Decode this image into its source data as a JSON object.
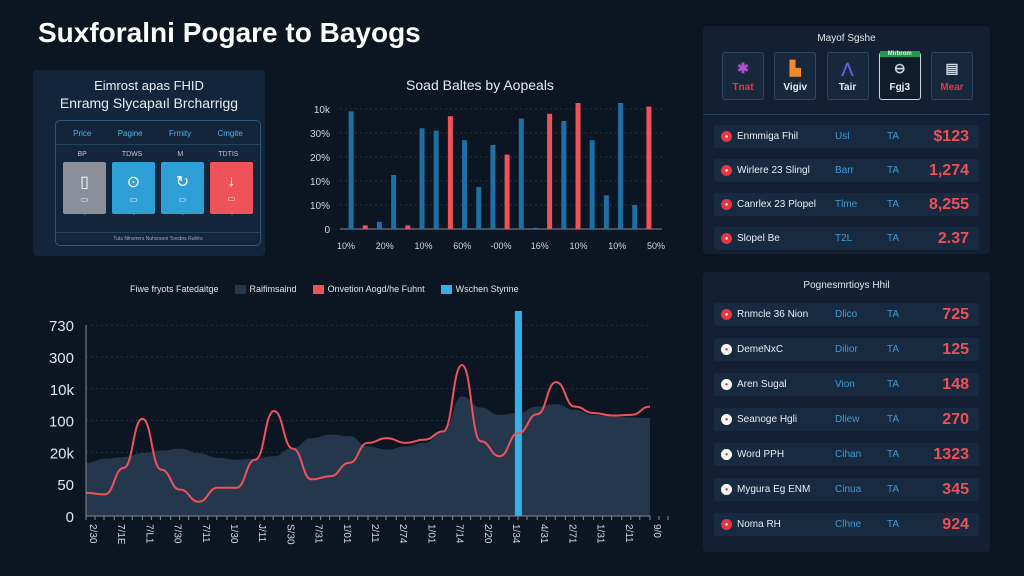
{
  "header": {
    "title": "Suxforalni Pogare to Bayogs"
  },
  "summary_card": {
    "title_line1": "Eimrost apas FHID",
    "title_line2": "Enramg Slycapaıl Brcharrigg",
    "columns": [
      "Price",
      "Pagine",
      "Frmity",
      "Cmgite"
    ],
    "sublabels": [
      "BP",
      "TDWS",
      "M",
      "TDTIS"
    ],
    "tiles": [
      {
        "icon": "battery-icon",
        "glyph": "▯",
        "color": "#8a8f99"
      },
      {
        "icon": "dollar-circle-icon",
        "glyph": "⊙",
        "color": "#2f9fd8"
      },
      {
        "icon": "refresh-icon",
        "glyph": "↻",
        "color": "#2f9fd8"
      },
      {
        "icon": "arrow-down-icon",
        "glyph": "↓",
        "color": "#f0525a"
      }
    ],
    "footer": "Tuts Nlnsmrrs Nuhsrsoni Tovsbrs Ruhlrs"
  },
  "chart_data": [
    {
      "type": "bar",
      "title": "Soad Baltes by Aopeals",
      "yticks": [
        "0",
        "10%",
        "10%",
        "20%",
        "30%",
        "10k"
      ],
      "xticks": [
        "10%",
        "20%",
        "10%",
        "60%",
        "-00%",
        "16%",
        "10%",
        "10%",
        "50%"
      ],
      "colors": {
        "blue": "#1f6fa3",
        "red": "#f0525a"
      },
      "bars": [
        {
          "s": "blue",
          "v": 4.9
        },
        {
          "s": "red",
          "v": 0.15
        },
        {
          "s": "blue",
          "v": 0.3
        },
        {
          "s": "blue",
          "v": 2.25
        },
        {
          "s": "red",
          "v": 0.15
        },
        {
          "s": "blue",
          "v": 4.2
        },
        {
          "s": "blue",
          "v": 4.1
        },
        {
          "s": "red",
          "v": 4.7
        },
        {
          "s": "blue",
          "v": 3.7
        },
        {
          "s": "blue",
          "v": 1.75
        },
        {
          "s": "blue",
          "v": 3.5
        },
        {
          "s": "red",
          "v": 3.1
        },
        {
          "s": "blue",
          "v": 4.6
        },
        {
          "s": "blue",
          "v": 0.05
        },
        {
          "s": "red",
          "v": 4.8
        },
        {
          "s": "blue",
          "v": 4.5
        },
        {
          "s": "red",
          "v": 5.25
        },
        {
          "s": "blue",
          "v": 3.7
        },
        {
          "s": "blue",
          "v": 1.4
        },
        {
          "s": "blue",
          "v": 5.25
        },
        {
          "s": "blue",
          "v": 1.0
        },
        {
          "s": "red",
          "v": 5.1
        }
      ]
    },
    {
      "type": "line",
      "title": "Fiwe fryots Fatedaitge",
      "yticks": [
        "0",
        "50",
        "20k",
        "100",
        "10k",
        "300",
        "730"
      ],
      "xticks": [
        "2/30",
        "7/1E",
        "7/L1",
        "7/30",
        "7/11",
        "1/30",
        "J/11",
        "S/30",
        "7/31",
        "1/01",
        "2/11",
        "2/74",
        "1/01",
        "7/14",
        "2/20",
        "1/34",
        "4/31",
        "2/71",
        "1/31",
        "2/11",
        "9/0"
      ],
      "series": [
        {
          "name": "Raifimsaind",
          "kind": "area",
          "color": "#25374d",
          "values": [
            1.67,
            1.8,
            1.85,
            1.98,
            2.06,
            2.12,
            1.98,
            1.83,
            1.77,
            1.8,
            1.88,
            2.14,
            2.45,
            2.56,
            2.51,
            2.19,
            2.09,
            2.19,
            2.3,
            2.66,
            3.76,
            3.41,
            3.18,
            3.24,
            3.44,
            3.52,
            3.34,
            3.18,
            3.13,
            3.1,
            3.08
          ]
        },
        {
          "name": "Onvetion Aogd/he Fuhnt",
          "kind": "line",
          "color": "#f0525a",
          "values": [
            0.73,
            0.68,
            1.51,
            3.06,
            1.46,
            0.83,
            0.45,
            0.89,
            0.89,
            1.77,
            3.3,
            2.12,
            1.15,
            1.25,
            1.67,
            2.3,
            2.45,
            2.3,
            2.4,
            2.66,
            4.75,
            2.35,
            1.88,
            2.61,
            3.2,
            4.21,
            3.44,
            3.24,
            3.16,
            3.18,
            3.44
          ]
        },
        {
          "name": "Wschen Stynne",
          "kind": "marker",
          "color": "#33b0e8",
          "index": 23
        }
      ]
    }
  ],
  "top_panel": {
    "title": "Mayof Sgshe",
    "buttons": [
      {
        "label": "Tnat",
        "glyph": "✱",
        "color": "#e8353f",
        "selected": false
      },
      {
        "label": "Vigiv",
        "glyph": "▙",
        "color": "#e6ecf3",
        "selected": false
      },
      {
        "label": "Tair",
        "glyph": "⋀",
        "color": "#e6ecf3",
        "selected": false
      },
      {
        "label": "Fgj3",
        "glyph": "⊖",
        "color": "#e6ecf3",
        "selected": true,
        "badge": "Mirbrom"
      },
      {
        "label": "Mear",
        "glyph": "▤",
        "color": "#e8353f",
        "selected": false
      }
    ],
    "rows": [
      {
        "name": "Enmmiga Fhil",
        "type": "Usl",
        "ta": "TA",
        "value": "$123"
      },
      {
        "name": "Wirlere 23 Slingl",
        "type": "Barr",
        "ta": "TA",
        "value": "1,274"
      },
      {
        "name": "Canrlex 23 Plopel",
        "type": "Tlme",
        "ta": "TA",
        "value": "8,255"
      },
      {
        "name": "Slopel Be",
        "type": "T2L",
        "ta": "TA",
        "value": "2.37"
      }
    ]
  },
  "bottom_panel": {
    "title": "Pognesmrtioys Hhil",
    "rows": [
      {
        "name": "Rnmcle 36 Nion",
        "type": "Dlico",
        "ta": "TA",
        "value": "725",
        "dot": "#e8353f"
      },
      {
        "name": "DemeNxC",
        "type": "Dilior",
        "ta": "TA",
        "value": "125",
        "dot": "#ffffff"
      },
      {
        "name": "Aren Sugal",
        "type": "Vion",
        "ta": "TA",
        "value": "148",
        "dot": "#ffffff"
      },
      {
        "name": "Seanoge Hgli",
        "type": "Dliew",
        "ta": "TA",
        "value": "270",
        "dot": "#ffffff"
      },
      {
        "name": "Word PPH",
        "type": "Cihan",
        "ta": "TA",
        "value": "1323",
        "dot": "#ffffff"
      },
      {
        "name": "Mygura Eg ENM",
        "type": "Cinua",
        "ta": "TA",
        "value": "345",
        "dot": "#ffffff"
      },
      {
        "name": "Noma RH",
        "type": "Clhne",
        "ta": "TA",
        "value": "924",
        "dot": "#e8353f"
      }
    ]
  }
}
